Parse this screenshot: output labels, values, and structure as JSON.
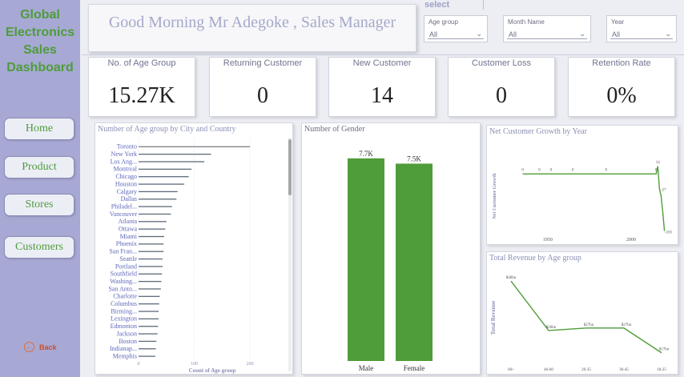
{
  "sidebar": {
    "brand": [
      "Global",
      "Electronics",
      "Sales",
      "Dashboard"
    ],
    "nav": [
      {
        "label": "Home"
      },
      {
        "label": "Product"
      },
      {
        "label": "Stores"
      },
      {
        "label": "Customers"
      }
    ],
    "back_label": "Back"
  },
  "header": {
    "greeting": "Good Morning Mr Adegoke , Sales Manager",
    "select_label": "select"
  },
  "filters": [
    {
      "label": "Age group",
      "value": "All"
    },
    {
      "label": "Month Name",
      "value": "All"
    },
    {
      "label": "Year",
      "value": "All"
    }
  ],
  "kpis": [
    {
      "title": "No. of Age Group",
      "value": "15.27K"
    },
    {
      "title": "Returning Customer",
      "value": "0"
    },
    {
      "title": "New Customer",
      "value": "14"
    },
    {
      "title": "Customer Loss",
      "value": "0"
    },
    {
      "title": "Retention Rate",
      "value": "0%"
    }
  ],
  "colors": {
    "accent": "#4f9c3a",
    "sidebar": "#a7a9d4",
    "bar_gray": "#8a8e8f",
    "title_text": "#a5a8c8",
    "back_icon": "#e56a2a"
  },
  "chart_data": [
    {
      "type": "bar",
      "orientation": "horizontal",
      "title": "Number of Age group by City and Country",
      "xlabel": "Count of Age group",
      "ylabel": "",
      "xlim": [
        0,
        230
      ],
      "xticks": [
        0,
        100,
        200
      ],
      "grid": true,
      "categories": [
        "Toronto",
        "New York",
        "Los Ang...",
        "Montreal",
        "Chicago",
        "Houston",
        "Calgary",
        "Dallas",
        "Philadel...",
        "Vancouver",
        "Atlanta",
        "Ottawa",
        "Miami",
        "Phoenix",
        "San Fran...",
        "Seattle",
        "Portland",
        "Southfield",
        "Washing...",
        "San Anto...",
        "Charlotte",
        "Columbus",
        "Birming...",
        "Lexington",
        "Edmonton",
        "Jackson",
        "Boston",
        "Indianap...",
        "Memphis"
      ],
      "values": [
        200,
        130,
        118,
        95,
        90,
        82,
        70,
        68,
        60,
        58,
        50,
        48,
        46,
        45,
        45,
        43,
        43,
        42,
        41,
        40,
        38,
        37,
        36,
        36,
        35,
        34,
        32,
        31,
        30
      ]
    },
    {
      "type": "bar",
      "title": "Number of Gender",
      "categories": [
        "Male",
        "Female"
      ],
      "values": [
        7700,
        7500
      ],
      "data_labels": [
        "7.7K",
        "7.5K"
      ],
      "ylim": [
        0,
        8000
      ],
      "grid": false
    },
    {
      "type": "line",
      "title": "Net Customer Growth by Year",
      "xlabel": "",
      "ylabel": "Net Customer Growth",
      "xticks": [
        1950,
        2000
      ],
      "xlim": [
        1928,
        2025
      ],
      "ylim": [
        -110,
        30
      ],
      "x": [
        1935,
        1945,
        1952,
        1965,
        1985,
        2015,
        2016,
        2017,
        2018,
        2019,
        2020
      ],
      "y": [
        0,
        0,
        0,
        0,
        0,
        0,
        14,
        -27,
        -41,
        -70,
        -105
      ],
      "labels": [
        "0",
        "0",
        "0",
        "0",
        "0",
        "0",
        "14",
        "-27",
        "",
        "",
        "-105"
      ]
    },
    {
      "type": "line",
      "title": "Total Revenue by Age group",
      "xlabel": "",
      "ylabel": "Total Revenue",
      "categories": [
        "60+",
        "46-60",
        "26-35",
        "36-45",
        "18-25"
      ],
      "values": [
        46,
        26,
        27,
        27,
        17
      ],
      "data_labels": [
        "$46bn",
        "$26bn",
        "$27bn",
        "$27bn",
        "$17bn"
      ],
      "ylim": [
        14,
        48
      ]
    }
  ]
}
